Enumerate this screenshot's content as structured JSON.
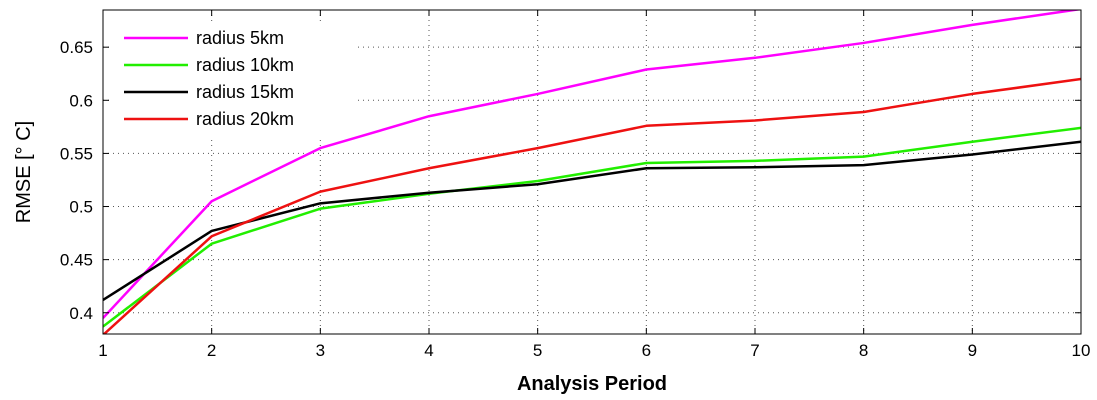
{
  "chart_data": {
    "type": "line",
    "xlabel": "Analysis Period",
    "ylabel": "RMSE [° C]",
    "x": [
      1,
      2,
      3,
      4,
      5,
      6,
      7,
      8,
      9,
      10
    ],
    "xlim": [
      1,
      10
    ],
    "ylim": [
      0.38,
      0.685
    ],
    "xticks": [
      1,
      2,
      3,
      4,
      5,
      6,
      7,
      8,
      9,
      10
    ],
    "xtick_labels": [
      "1",
      "2",
      "3",
      "4",
      "5",
      "6",
      "7",
      "8",
      "9",
      "10"
    ],
    "yticks": [
      0.4,
      0.45,
      0.5,
      0.55,
      0.6,
      0.65
    ],
    "ytick_labels": [
      "0.4",
      "0.45",
      "0.5",
      "0.55",
      "0.6",
      "0.65"
    ],
    "grid": true,
    "legend_position": "top-left",
    "series": [
      {
        "name": "radius 5km",
        "color": "#ff00ff",
        "values": [
          0.395,
          0.505,
          0.555,
          0.585,
          0.606,
          0.629,
          0.64,
          0.654,
          0.671,
          0.686
        ]
      },
      {
        "name": "radius 10km",
        "color": "#22ee00",
        "values": [
          0.387,
          0.465,
          0.498,
          0.512,
          0.524,
          0.541,
          0.543,
          0.547,
          0.561,
          0.574
        ]
      },
      {
        "name": "radius 15km",
        "color": "#000000",
        "values": [
          0.412,
          0.477,
          0.503,
          0.513,
          0.521,
          0.536,
          0.537,
          0.539,
          0.549,
          0.561
        ]
      },
      {
        "name": "radius 20km",
        "color": "#ee1111",
        "values": [
          0.379,
          0.472,
          0.514,
          0.536,
          0.555,
          0.576,
          0.581,
          0.589,
          0.606,
          0.62
        ]
      }
    ]
  }
}
